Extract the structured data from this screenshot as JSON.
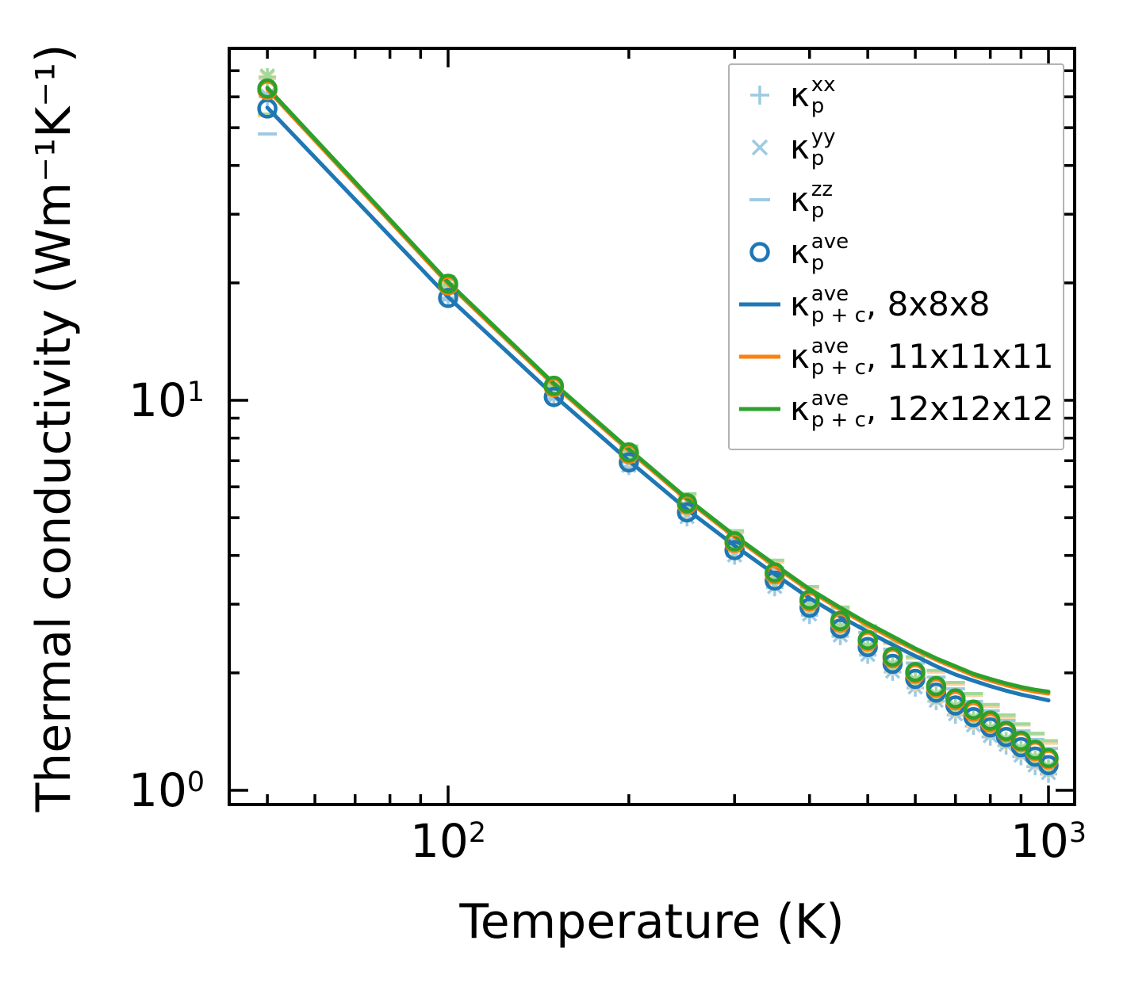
{
  "figure": {
    "kappa_symbol": "κ",
    "background": "#ffffff",
    "axis_color": "#000000",
    "legend_border_color": "#b3b3b3"
  },
  "chart_data": {
    "type": "line",
    "scale": "log-log",
    "title": "",
    "xlabel": "Temperature (K)",
    "ylabel": "Thermal conductivity (Wm⁻¹K⁻¹)",
    "x_axis": {
      "label": "Temperature (K)",
      "scale": "log",
      "range": [
        43.2,
        1106
      ],
      "major_ticks": [
        100,
        1000
      ],
      "minor_ticks": [
        50,
        60,
        70,
        80,
        90,
        200,
        300,
        400,
        500,
        600,
        700,
        800,
        900
      ],
      "tick_labels": [
        {
          "value": 100,
          "base": "10",
          "exp": "2"
        },
        {
          "value": 1000,
          "base": "10",
          "exp": "3"
        }
      ]
    },
    "y_axis": {
      "label": "Thermal conductivity (Wm⁻¹K⁻¹)",
      "scale": "log",
      "range": [
        0.92,
        80
      ],
      "major_ticks": [
        1,
        10
      ],
      "minor_ticks": [
        2,
        3,
        4,
        5,
        6,
        7,
        8,
        9,
        20,
        30,
        40,
        50,
        60,
        70
      ],
      "tick_labels": [
        {
          "value": 1,
          "base": "10",
          "exp": "0"
        },
        {
          "value": 10,
          "base": "10",
          "exp": "1"
        }
      ]
    },
    "x": [
      50,
      100,
      150,
      200,
      250,
      300,
      350,
      400,
      450,
      500,
      550,
      600,
      650,
      700,
      750,
      800,
      850,
      900,
      950,
      1000
    ],
    "scatter_series": [
      {
        "id": "kp-xx-8x8x8",
        "mesh": "8x8x8",
        "component": "xx",
        "marker": "plus",
        "color": "#9ecae1",
        "values": [
          60.0,
          18.3,
          10.1,
          6.77,
          5.0,
          3.99,
          3.31,
          2.81,
          2.48,
          2.22,
          2.01,
          1.83,
          1.69,
          1.56,
          1.46,
          1.37,
          1.3,
          1.22,
          1.15,
          1.1
        ]
      },
      {
        "id": "kp-yy-8x8x8",
        "mesh": "8x8x8",
        "component": "yy",
        "marker": "cross",
        "color": "#9ecae1",
        "values": [
          60.4,
          18.5,
          10.2,
          6.81,
          5.03,
          4.01,
          3.33,
          2.83,
          2.5,
          2.23,
          2.02,
          1.84,
          1.7,
          1.57,
          1.47,
          1.38,
          1.31,
          1.23,
          1.16,
          1.11
        ]
      },
      {
        "id": "kp-zz-8x8x8",
        "mesh": "8x8x8",
        "component": "zz",
        "marker": "dash",
        "color": "#9ecae1",
        "values": [
          48.2,
          18.1,
          10.3,
          7.21,
          5.45,
          4.39,
          3.71,
          3.18,
          2.82,
          2.54,
          2.3,
          2.12,
          1.95,
          1.82,
          1.69,
          1.6,
          1.51,
          1.42,
          1.35,
          1.28
        ]
      },
      {
        "id": "kp-xx-11x11x11",
        "mesh": "11x11x11",
        "component": "xx",
        "marker": "plus",
        "color": "#fdd0a2",
        "values": [
          66.8,
          19.7,
          10.7,
          7.11,
          5.23,
          4.16,
          3.45,
          2.92,
          2.57,
          2.3,
          2.07,
          1.89,
          1.73,
          1.61,
          1.5,
          1.42,
          1.33,
          1.26,
          1.19,
          1.13
        ]
      },
      {
        "id": "kp-yy-11x11x11",
        "mesh": "11x11x11",
        "component": "yy",
        "marker": "cross",
        "color": "#fdd0a2",
        "values": [
          67.2,
          19.9,
          10.8,
          7.15,
          5.26,
          4.19,
          3.47,
          2.94,
          2.59,
          2.31,
          2.08,
          1.9,
          1.74,
          1.62,
          1.51,
          1.43,
          1.34,
          1.27,
          1.2,
          1.14
        ]
      },
      {
        "id": "kp-zz-11x11x11",
        "mesh": "11x11x11",
        "component": "zz",
        "marker": "dash",
        "color": "#fdd0a2",
        "values": [
          53.7,
          19.5,
          10.9,
          7.56,
          5.7,
          4.58,
          3.85,
          3.3,
          2.92,
          2.61,
          2.38,
          2.18,
          2.01,
          1.87,
          1.75,
          1.64,
          1.54,
          1.47,
          1.39,
          1.32
        ]
      },
      {
        "id": "kp-xx-12x12x12",
        "mesh": "12x12x12",
        "component": "xx",
        "marker": "plus",
        "color": "#a1d99b",
        "values": [
          67.5,
          19.9,
          10.8,
          7.18,
          5.28,
          4.2,
          3.48,
          2.95,
          2.6,
          2.32,
          2.09,
          1.91,
          1.75,
          1.63,
          1.52,
          1.43,
          1.34,
          1.27,
          1.2,
          1.14
        ]
      },
      {
        "id": "kp-yy-12x12x12",
        "mesh": "12x12x12",
        "component": "yy",
        "marker": "cross",
        "color": "#a1d99b",
        "values": [
          67.9,
          20.1,
          10.9,
          7.22,
          5.31,
          4.23,
          3.5,
          2.97,
          2.62,
          2.33,
          2.1,
          1.92,
          1.76,
          1.64,
          1.53,
          1.44,
          1.35,
          1.28,
          1.21,
          1.15
        ]
      },
      {
        "id": "kp-zz-12x12x12",
        "mesh": "12x12x12",
        "component": "zz",
        "marker": "dash",
        "color": "#a1d99b",
        "values": [
          54.2,
          19.7,
          11.0,
          7.64,
          5.76,
          4.63,
          3.89,
          3.33,
          2.95,
          2.64,
          2.4,
          2.2,
          2.03,
          1.89,
          1.77,
          1.66,
          1.56,
          1.48,
          1.4,
          1.34
        ]
      },
      {
        "id": "kp-ave-8x8x8",
        "mesh": "8x8x8",
        "component": "ave",
        "marker": "circle",
        "color": "#1f77b4",
        "values": [
          56.0,
          18.3,
          10.2,
          6.93,
          5.16,
          4.13,
          3.45,
          2.94,
          2.6,
          2.33,
          2.11,
          1.93,
          1.78,
          1.65,
          1.54,
          1.45,
          1.37,
          1.29,
          1.22,
          1.16
        ]
      },
      {
        "id": "kp-ave-11x11x11",
        "mesh": "11x11x11",
        "component": "ave",
        "marker": "circle",
        "color": "#ff7f0e",
        "values": [
          62.4,
          19.7,
          10.8,
          7.28,
          5.4,
          4.31,
          3.58,
          3.05,
          2.69,
          2.41,
          2.18,
          1.99,
          1.83,
          1.7,
          1.59,
          1.49,
          1.41,
          1.33,
          1.26,
          1.2
        ]
      },
      {
        "id": "kp-ave-12x12x12",
        "mesh": "12x12x12",
        "component": "ave",
        "marker": "circle",
        "color": "#2ca02c",
        "values": [
          63.0,
          19.9,
          10.9,
          7.35,
          5.45,
          4.35,
          3.62,
          3.08,
          2.72,
          2.43,
          2.2,
          2.01,
          1.85,
          1.72,
          1.61,
          1.51,
          1.42,
          1.34,
          1.27,
          1.21
        ]
      }
    ],
    "line_series": [
      {
        "id": "kpc-ave-8x8x8",
        "mesh": "8x8x8",
        "color": "#1f77b4",
        "values": [
          56.3,
          18.4,
          10.3,
          7.0,
          5.25,
          4.24,
          3.58,
          3.11,
          2.79,
          2.55,
          2.36,
          2.21,
          2.08,
          1.98,
          1.91,
          1.85,
          1.8,
          1.76,
          1.73,
          1.7
        ]
      },
      {
        "id": "kpc-ave-11x11x11",
        "mesh": "11x11x11",
        "color": "#ff7f0e",
        "values": [
          62.7,
          19.9,
          10.95,
          7.43,
          5.55,
          4.46,
          3.75,
          3.25,
          2.91,
          2.65,
          2.45,
          2.29,
          2.16,
          2.06,
          1.97,
          1.91,
          1.86,
          1.82,
          1.79,
          1.77
        ]
      },
      {
        "id": "kpc-ave-12x12x12",
        "mesh": "12x12x12",
        "color": "#2ca02c",
        "values": [
          63.3,
          20.1,
          11.05,
          7.5,
          5.6,
          4.5,
          3.79,
          3.28,
          2.94,
          2.68,
          2.48,
          2.31,
          2.18,
          2.08,
          1.99,
          1.93,
          1.88,
          1.84,
          1.81,
          1.79
        ]
      }
    ],
    "legend": {
      "position": "upper right",
      "items": [
        {
          "marker": "plus",
          "color": "#9ecae1",
          "kappa": "κ",
          "sup": "xx",
          "sub": "p",
          "suffix": ""
        },
        {
          "marker": "cross",
          "color": "#9ecae1",
          "kappa": "κ",
          "sup": "yy",
          "sub": "p",
          "suffix": ""
        },
        {
          "marker": "dash",
          "color": "#9ecae1",
          "kappa": "κ",
          "sup": "zz",
          "sub": "p",
          "suffix": ""
        },
        {
          "marker": "circle",
          "color": "#1f77b4",
          "kappa": "κ",
          "sup": "ave",
          "sub": "p",
          "suffix": ""
        },
        {
          "marker": "line",
          "color": "#1f77b4",
          "kappa": "κ",
          "sup": "ave",
          "sub": "p + c",
          "suffix": ", 8x8x8"
        },
        {
          "marker": "line",
          "color": "#ff7f0e",
          "kappa": "κ",
          "sup": "ave",
          "sub": "p + c",
          "suffix": ", 11x11x11"
        },
        {
          "marker": "line",
          "color": "#2ca02c",
          "kappa": "κ",
          "sup": "ave",
          "sub": "p + c",
          "suffix": ", 12x12x12"
        }
      ]
    }
  }
}
